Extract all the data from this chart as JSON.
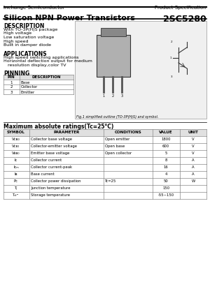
{
  "company": "Inchange Semiconductor",
  "spec_label": "Product Specification",
  "title": "Silicon NPN Power Transistors",
  "part_number": "2SC5280",
  "description_title": "DESCRIPTION",
  "description_lines": [
    "With TO-3P(H)S package",
    "High voltage",
    "Low saturation voltage",
    "High speed",
    "Built in damper diode"
  ],
  "applications_title": "APPLICATIONS",
  "applications_lines": [
    "High speed switching applications",
    "Horizontal deflection output for medium",
    "   resolution display,color TV"
  ],
  "pinning_title": "PINNING",
  "pinning_headers": [
    "PIN",
    "DESCRIPTION"
  ],
  "pinning_rows": [
    [
      "1",
      "Base"
    ],
    [
      "2",
      "Collector"
    ],
    [
      "3",
      "Emitter"
    ]
  ],
  "fig_caption": "Fig.1 simplified outline (TO-3P(H)S) and symbol.",
  "ratings_title": "Maximum absolute ratings(Tc=25°C)",
  "ratings_headers": [
    "SYMBOL",
    "PARAMETER",
    "CONDITIONS",
    "VALUE",
    "UNIT"
  ],
  "ratings_rows": [
    [
      "VCBO",
      "Collector base voltage",
      "Open emitter",
      "1800",
      "V"
    ],
    [
      "VCEO",
      "Collector-emitter voltage",
      "Open base",
      "600",
      "V"
    ],
    [
      "VEBO",
      "Emitter base voltage",
      "Open collector",
      "5",
      "V"
    ],
    [
      "IC",
      "Collector current",
      "",
      "8",
      "A"
    ],
    [
      "ICM",
      "Collector current-peak",
      "",
      "16",
      "A"
    ],
    [
      "IB",
      "Base current",
      "",
      "4",
      "A"
    ],
    [
      "PC",
      "Collector power dissipation",
      "Tc=25",
      "50",
      "W"
    ],
    [
      "Tj",
      "Junction temperature",
      "",
      "150",
      ""
    ],
    [
      "Tstg",
      "Storage temperature",
      "",
      "-55~150",
      ""
    ]
  ],
  "ratings_symbols": [
    "Vᴄʙ₀",
    "Vᴄᴇ₀",
    "Vᴇʙ₀",
    "Iᴄ",
    "Iᴄₘ",
    "Iʙ",
    "Pᴄ",
    "Tⱼ",
    "Tₛₜᴳ"
  ],
  "bg_color": "#ffffff",
  "header_bg": "#e0e0e0",
  "table_line_color": "#aaaaaa"
}
